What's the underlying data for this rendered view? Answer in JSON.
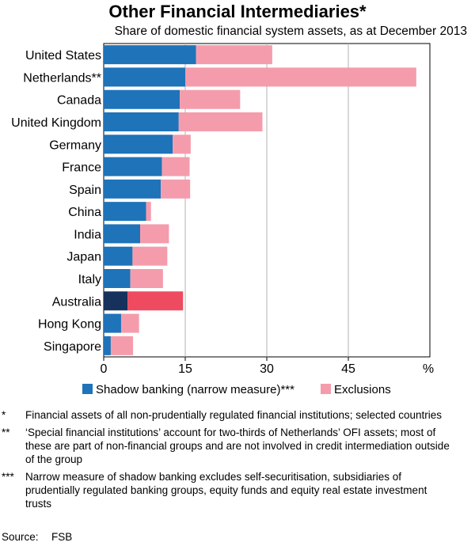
{
  "title": "Other Financial Intermediaries*",
  "subtitle": "Share of domestic financial system assets, as at December 2013",
  "chart_data": {
    "type": "bar",
    "orientation": "horizontal",
    "stacked": true,
    "categories": [
      "United States",
      "Netherlands**",
      "Canada",
      "United Kingdom",
      "Germany",
      "France",
      "Spain",
      "China",
      "India",
      "Japan",
      "Italy",
      "Australia",
      "Hong Kong",
      "Singapore"
    ],
    "series": [
      {
        "name": "Shadow banking (narrow measure)***",
        "values": [
          17,
          15,
          14,
          13.8,
          12.7,
          10.7,
          10.5,
          7.8,
          6.7,
          5.3,
          4.9,
          4.4,
          3.2,
          1.3
        ]
      },
      {
        "name": "Exclusions",
        "values": [
          14,
          42.5,
          11.1,
          15.4,
          3.3,
          5.1,
          5.4,
          0.9,
          5.3,
          6.4,
          6.0,
          10.2,
          3.3,
          4.1
        ]
      }
    ],
    "xlim": [
      0,
      60
    ],
    "xticks": [
      "0",
      "15",
      "30",
      "45"
    ],
    "unit": "%",
    "colors": {
      "shadow": "#1f73b8",
      "exclusions": "#f59cac",
      "shadow_highlight": "#16325c",
      "exclusions_highlight": "#ee4b60"
    },
    "highlight_category": "Australia",
    "grid": true,
    "legend_position": "bottom"
  },
  "notes": [
    {
      "mark": "*",
      "text": "Financial assets of all non-prudentially regulated financial institutions; selected countries"
    },
    {
      "mark": "**",
      "text": "‘Special financial institutions’ account for two-thirds of Netherlands’ OFI assets; most of these are part of non-financial groups and are not involved in credit intermediation outside of the group"
    },
    {
      "mark": "***",
      "text": "Narrow measure of shadow banking excludes self-securitisation, subsidiaries of prudentially regulated banking groups, equity funds and equity real estate investment trusts"
    }
  ],
  "source": {
    "label": "Source:",
    "value": "FSB"
  }
}
